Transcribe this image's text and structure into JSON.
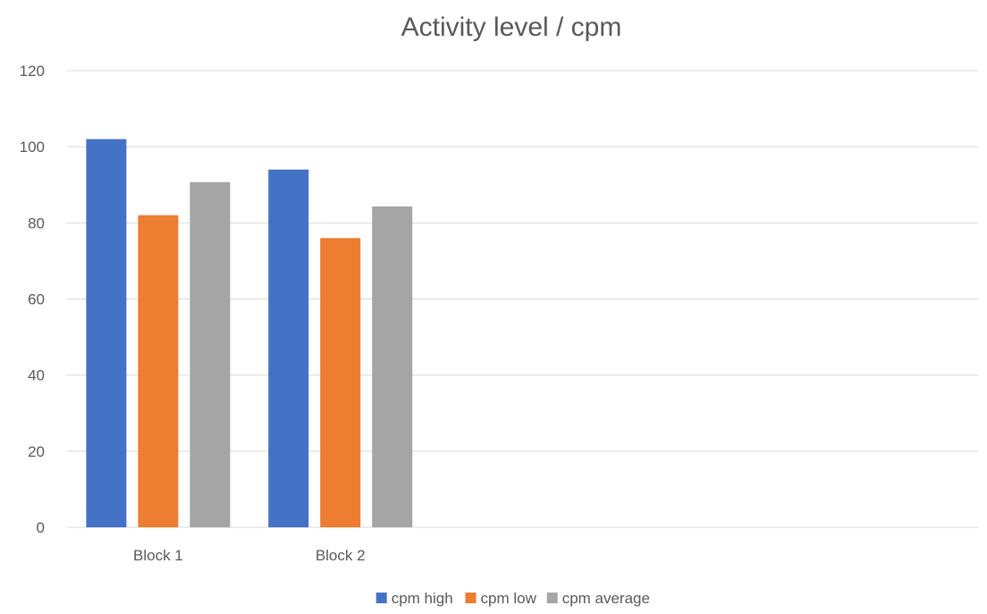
{
  "chart_data": {
    "type": "bar",
    "title": "Activity level / cpm",
    "xlabel": "",
    "ylabel": "",
    "categories": [
      "Block 1",
      "Block 2",
      "",
      "",
      ""
    ],
    "series": [
      {
        "name": "cpm high",
        "color": "#4472C4",
        "values": [
          102,
          94,
          null,
          null,
          null
        ]
      },
      {
        "name": "cpm low",
        "color": "#ED7D31",
        "values": [
          82,
          76,
          null,
          null,
          null
        ]
      },
      {
        "name": "cpm average",
        "color": "#A5A5A5",
        "values": [
          90.7,
          84.3,
          null,
          null,
          null
        ]
      }
    ],
    "ylim": [
      0,
      120
    ],
    "yticks": [
      0,
      20,
      40,
      60,
      80,
      100,
      120
    ],
    "grid": true,
    "legend_position": "bottom"
  }
}
